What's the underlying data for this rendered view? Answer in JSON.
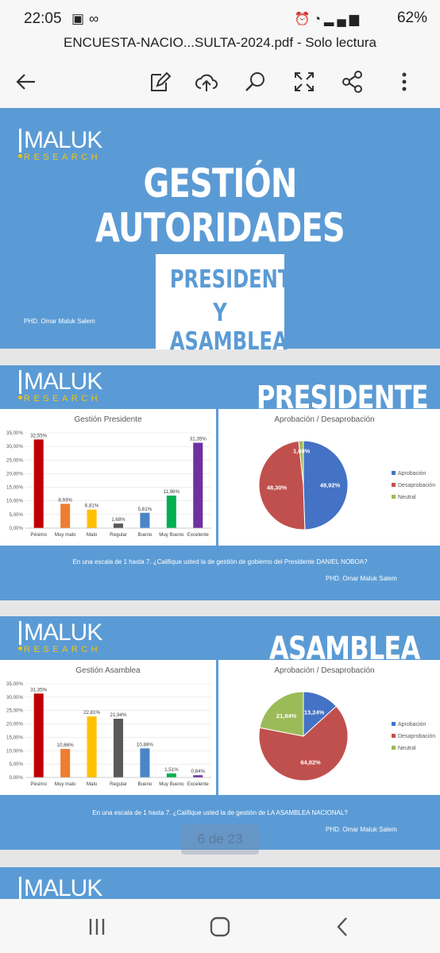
{
  "status": {
    "time": "22:05",
    "battery": "62%",
    "left_icons": [
      "image-icon",
      "voicemail-icon"
    ],
    "right_icons": [
      "alarm-icon",
      "mute-icon",
      "wifi-icon",
      "volte-icon",
      "signal-icon",
      "battery-icon"
    ]
  },
  "document": {
    "title": "ENCUESTA-NACIO...SULTA-2024.pdf - Solo lectura"
  },
  "toolbar": {
    "icons": [
      "back-arrow-icon",
      "edit-icon",
      "cloud-upload-icon",
      "search-icon",
      "expand-icon",
      "share-icon",
      "more-icon"
    ]
  },
  "slide1": {
    "logo_main": "MALUK",
    "logo_sub": "RESEARCH",
    "title_line1": "GESTIÓN",
    "title_line2": "AUTORIDADES",
    "box_line1": "PRESIDENTE",
    "box_line2": "Y ASAMBLEA",
    "author": "PHD. Omar Maluk Salem"
  },
  "slide2": {
    "logo_main": "MALUK",
    "logo_sub": "RESEARCH",
    "heading": "PRESIDENTE",
    "question": "En una escala de 1 hasta 7. ¿Califique usted la de gestión de gobierno del Presidente DANIEL NOBOA?",
    "author": "PHD. Omar Maluk Salem"
  },
  "slide3": {
    "logo_main": "MALUK",
    "logo_sub": "RESEARCH",
    "heading": "ASAMBLEA",
    "question": "En una escala de 1 hasta 7. ¿Califique usted la de gestión de LA ASAMBLEA NACIONAL?",
    "author": "PHD. Omar Maluk Salem"
  },
  "slide4": {
    "logo_main": "MALUK"
  },
  "page_indicator": "6 de 23",
  "navbar": {
    "icons": [
      "recent-apps-icon",
      "home-icon",
      "back-icon"
    ]
  },
  "colors": {
    "slide_blue": "#5b9bd5",
    "pesimo": "#c00000",
    "muy_malo": "#ed7d31",
    "malo": "#ffc000",
    "regular": "#595959",
    "bueno": "#4a86c5",
    "muy_bueno": "#00b050",
    "excelente": "#7030a0",
    "aprobacion": "#4472c4",
    "desaprobacion": "#c0504d",
    "neutral": "#9bbb59"
  },
  "chart_data": [
    {
      "type": "bar",
      "title": "Gestión Presidente",
      "categories": [
        "Pésimo",
        "Muy malo",
        "Malo",
        "Regular",
        "Bueno",
        "Muy Bueno",
        "Excelente"
      ],
      "values": [
        32.55,
        8.93,
        6.81,
        1.68,
        5.61,
        11.96,
        31.35
      ],
      "labels": [
        "32,55%",
        "8,93%",
        "6,81%",
        "1,68%",
        "5,61%",
        "11,96%",
        "31,35%"
      ],
      "yticks": [
        "0,00%",
        "5,00%",
        "10,00%",
        "15,00%",
        "20,00%",
        "25,00%",
        "30,00%",
        "35,00%"
      ],
      "ylim": [
        0,
        35
      ]
    },
    {
      "type": "pie",
      "title": "Aprobación / Desaprobación",
      "categories": [
        "Aprobación",
        "Desaprobación",
        "Neutral"
      ],
      "values": [
        48.92,
        48.3,
        1.68
      ],
      "labels": [
        "48,92%",
        "48,30%",
        "1,68%"
      ],
      "legend": "right"
    },
    {
      "type": "bar",
      "title": "Gestión Asamblea",
      "categories": [
        "Pésimo",
        "Muy malo",
        "Malo",
        "Regular",
        "Bueno",
        "Muy Bueno",
        "Excelente"
      ],
      "values": [
        31.35,
        10.66,
        22.81,
        21.94,
        10.88,
        1.51,
        0.84
      ],
      "labels": [
        "31,35%",
        "10,66%",
        "22,81%",
        "21,94%",
        "10,88%",
        "1,51%",
        "0,84%"
      ],
      "yticks": [
        "0,00%",
        "5,00%",
        "10,00%",
        "15,00%",
        "20,00%",
        "25,00%",
        "30,00%",
        "35,00%"
      ],
      "ylim": [
        0,
        35
      ]
    },
    {
      "type": "pie",
      "title": "Aprobación / Desaprobación",
      "categories": [
        "Aprobación",
        "Desaprobación",
        "Neutral"
      ],
      "values": [
        13.24,
        64.82,
        21.94
      ],
      "labels": [
        "13,24%",
        "64,82%",
        "21,94%"
      ],
      "legend": "right"
    }
  ]
}
